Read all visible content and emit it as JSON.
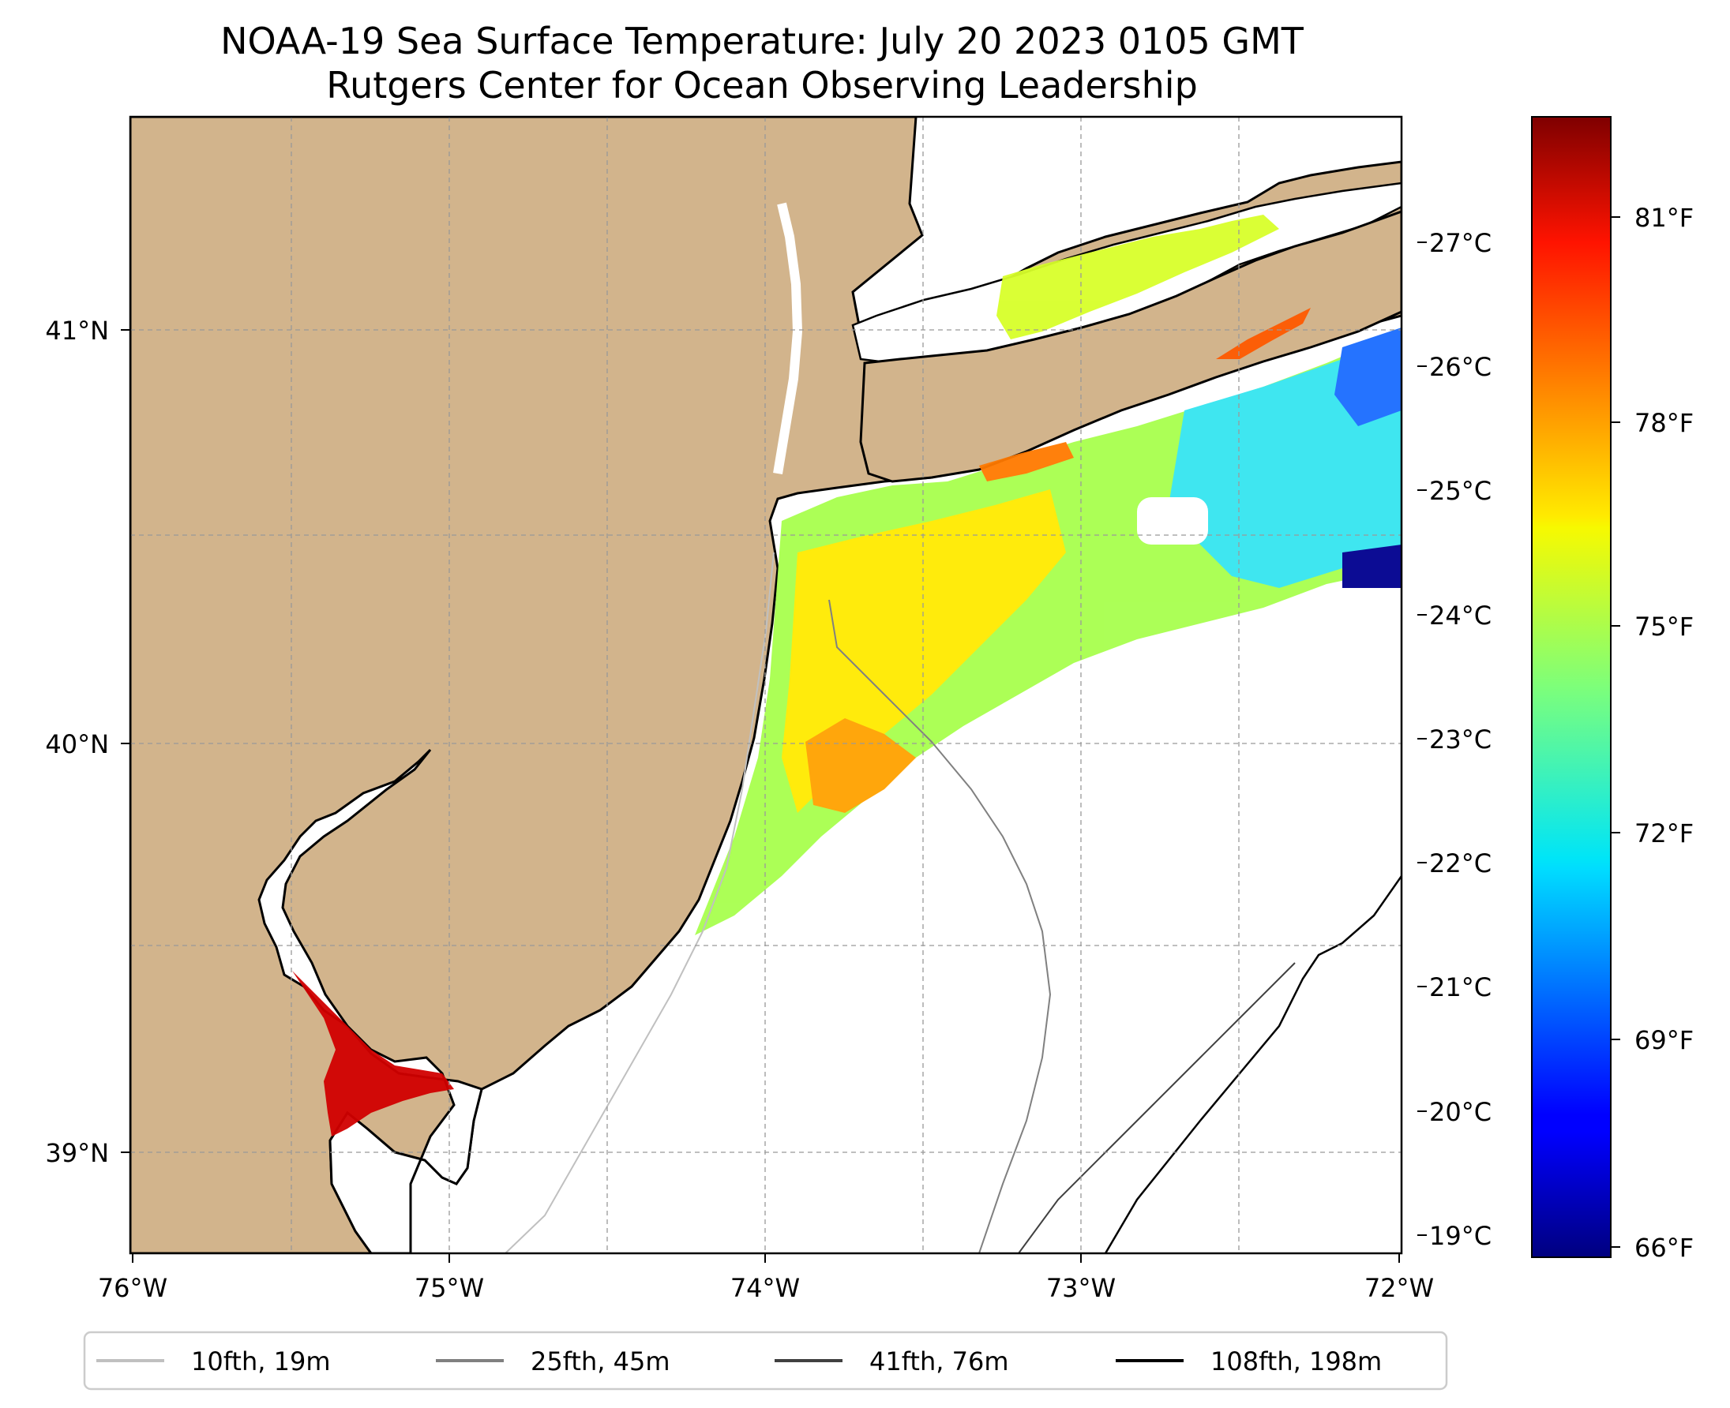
{
  "title": {
    "line1": "NOAA-19 Sea Surface Temperature: July 20 2023 0105 GMT",
    "line2": "Rutgers Center for Ocean Observing Leadership"
  },
  "map": {
    "x_ticks": [
      "76°W",
      "75°W",
      "74°W",
      "73°W",
      "72°W"
    ],
    "y_ticks": [
      "41°N",
      "40°N",
      "39°N"
    ],
    "land_color": "#d2b48c",
    "ocean_color": "#ffffff"
  },
  "celsius_ticks": [
    "27°C",
    "26°C",
    "25°C",
    "24°C",
    "23°C",
    "22°C",
    "21°C",
    "20°C",
    "19°C"
  ],
  "colorbar": {
    "ticks": [
      "81°F",
      "78°F",
      "75°F",
      "72°F",
      "69°F",
      "66°F"
    ],
    "colormap": "jet",
    "min_f": 65.8,
    "max_f": 82.5
  },
  "legend": {
    "items": [
      {
        "label": "10fth, 19m",
        "color": "#c0c0c0"
      },
      {
        "label": "25fth, 45m",
        "color": "#808080"
      },
      {
        "label": "41fth, 76m",
        "color": "#404040"
      },
      {
        "label": "108fth, 198m",
        "color": "#000000"
      }
    ]
  }
}
